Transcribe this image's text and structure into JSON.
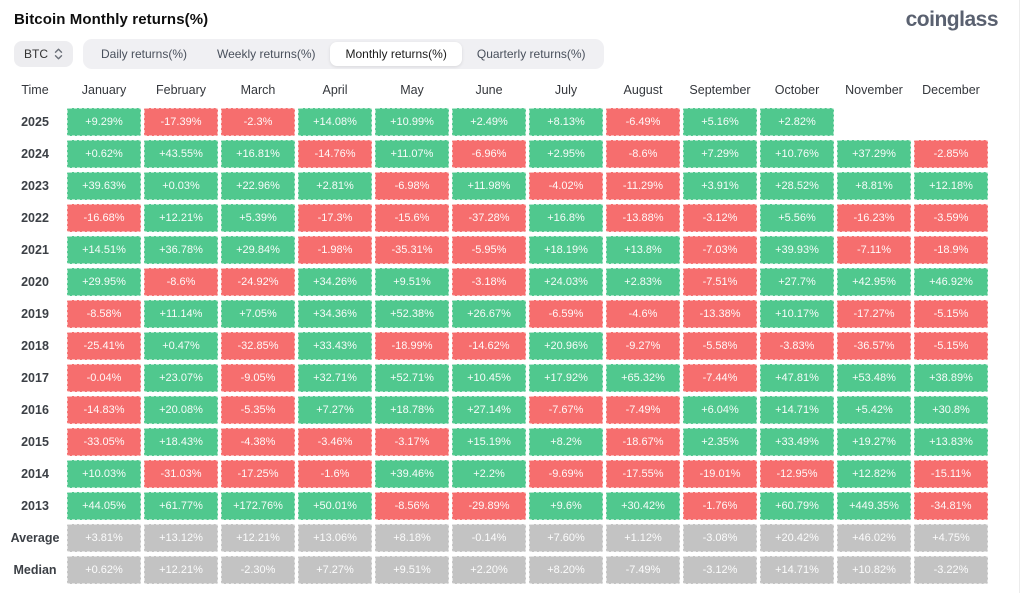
{
  "header": {
    "title": "Bitcoin Monthly returns(%)",
    "logo": "coinglass"
  },
  "controls": {
    "symbol_select": {
      "value": "BTC"
    },
    "tabs": [
      {
        "label": "Daily returns(%)",
        "active": false
      },
      {
        "label": "Weekly returns(%)",
        "active": false
      },
      {
        "label": "Monthly returns(%)",
        "active": true
      },
      {
        "label": "Quarterly returns(%)",
        "active": false
      }
    ]
  },
  "colors": {
    "positive": "#50c88e",
    "negative": "#f66e6e",
    "summary": "#c3c3c3"
  },
  "table": {
    "time_header": "Time",
    "months": [
      "January",
      "February",
      "March",
      "April",
      "May",
      "June",
      "July",
      "August",
      "September",
      "October",
      "November",
      "December"
    ],
    "rows": [
      {
        "label": "2025",
        "type": "year",
        "values": [
          "+9.29%",
          "-17.39%",
          "-2.3%",
          "+14.08%",
          "+10.99%",
          "+2.49%",
          "+8.13%",
          "-6.49%",
          "+5.16%",
          "+2.82%",
          null,
          null
        ]
      },
      {
        "label": "2024",
        "type": "year",
        "values": [
          "+0.62%",
          "+43.55%",
          "+16.81%",
          "-14.76%",
          "+11.07%",
          "-6.96%",
          "+2.95%",
          "-8.6%",
          "+7.29%",
          "+10.76%",
          "+37.29%",
          "-2.85%"
        ]
      },
      {
        "label": "2023",
        "type": "year",
        "values": [
          "+39.63%",
          "+0.03%",
          "+22.96%",
          "+2.81%",
          "-6.98%",
          "+11.98%",
          "-4.02%",
          "-11.29%",
          "+3.91%",
          "+28.52%",
          "+8.81%",
          "+12.18%"
        ]
      },
      {
        "label": "2022",
        "type": "year",
        "values": [
          "-16.68%",
          "+12.21%",
          "+5.39%",
          "-17.3%",
          "-15.6%",
          "-37.28%",
          "+16.8%",
          "-13.88%",
          "-3.12%",
          "+5.56%",
          "-16.23%",
          "-3.59%"
        ]
      },
      {
        "label": "2021",
        "type": "year",
        "values": [
          "+14.51%",
          "+36.78%",
          "+29.84%",
          "-1.98%",
          "-35.31%",
          "-5.95%",
          "+18.19%",
          "+13.8%",
          "-7.03%",
          "+39.93%",
          "-7.11%",
          "-18.9%"
        ]
      },
      {
        "label": "2020",
        "type": "year",
        "values": [
          "+29.95%",
          "-8.6%",
          "-24.92%",
          "+34.26%",
          "+9.51%",
          "-3.18%",
          "+24.03%",
          "+2.83%",
          "-7.51%",
          "+27.7%",
          "+42.95%",
          "+46.92%"
        ]
      },
      {
        "label": "2019",
        "type": "year",
        "values": [
          "-8.58%",
          "+11.14%",
          "+7.05%",
          "+34.36%",
          "+52.38%",
          "+26.67%",
          "-6.59%",
          "-4.6%",
          "-13.38%",
          "+10.17%",
          "-17.27%",
          "-5.15%"
        ]
      },
      {
        "label": "2018",
        "type": "year",
        "values": [
          "-25.41%",
          "+0.47%",
          "-32.85%",
          "+33.43%",
          "-18.99%",
          "-14.62%",
          "+20.96%",
          "-9.27%",
          "-5.58%",
          "-3.83%",
          "-36.57%",
          "-5.15%"
        ]
      },
      {
        "label": "2017",
        "type": "year",
        "values": [
          "-0.04%",
          "+23.07%",
          "-9.05%",
          "+32.71%",
          "+52.71%",
          "+10.45%",
          "+17.92%",
          "+65.32%",
          "-7.44%",
          "+47.81%",
          "+53.48%",
          "+38.89%"
        ]
      },
      {
        "label": "2016",
        "type": "year",
        "values": [
          "-14.83%",
          "+20.08%",
          "-5.35%",
          "+7.27%",
          "+18.78%",
          "+27.14%",
          "-7.67%",
          "-7.49%",
          "+6.04%",
          "+14.71%",
          "+5.42%",
          "+30.8%"
        ]
      },
      {
        "label": "2015",
        "type": "year",
        "values": [
          "-33.05%",
          "+18.43%",
          "-4.38%",
          "-3.46%",
          "-3.17%",
          "+15.19%",
          "+8.2%",
          "-18.67%",
          "+2.35%",
          "+33.49%",
          "+19.27%",
          "+13.83%"
        ]
      },
      {
        "label": "2014",
        "type": "year",
        "values": [
          "+10.03%",
          "-31.03%",
          "-17.25%",
          "-1.6%",
          "+39.46%",
          "+2.2%",
          "-9.69%",
          "-17.55%",
          "-19.01%",
          "-12.95%",
          "+12.82%",
          "-15.11%"
        ]
      },
      {
        "label": "2013",
        "type": "year",
        "values": [
          "+44.05%",
          "+61.77%",
          "+172.76%",
          "+50.01%",
          "-8.56%",
          "-29.89%",
          "+9.6%",
          "+30.42%",
          "-1.76%",
          "+60.79%",
          "+449.35%",
          "-34.81%"
        ]
      },
      {
        "label": "Average",
        "type": "summary",
        "values": [
          "+3.81%",
          "+13.12%",
          "+12.21%",
          "+13.06%",
          "+8.18%",
          "-0.14%",
          "+7.60%",
          "+1.12%",
          "-3.08%",
          "+20.42%",
          "+46.02%",
          "+4.75%"
        ]
      },
      {
        "label": "Median",
        "type": "summary",
        "values": [
          "+0.62%",
          "+12.21%",
          "-2.30%",
          "+7.27%",
          "+9.51%",
          "+2.20%",
          "+8.20%",
          "-7.49%",
          "-3.12%",
          "+14.71%",
          "+10.82%",
          "-3.22%"
        ]
      }
    ]
  }
}
